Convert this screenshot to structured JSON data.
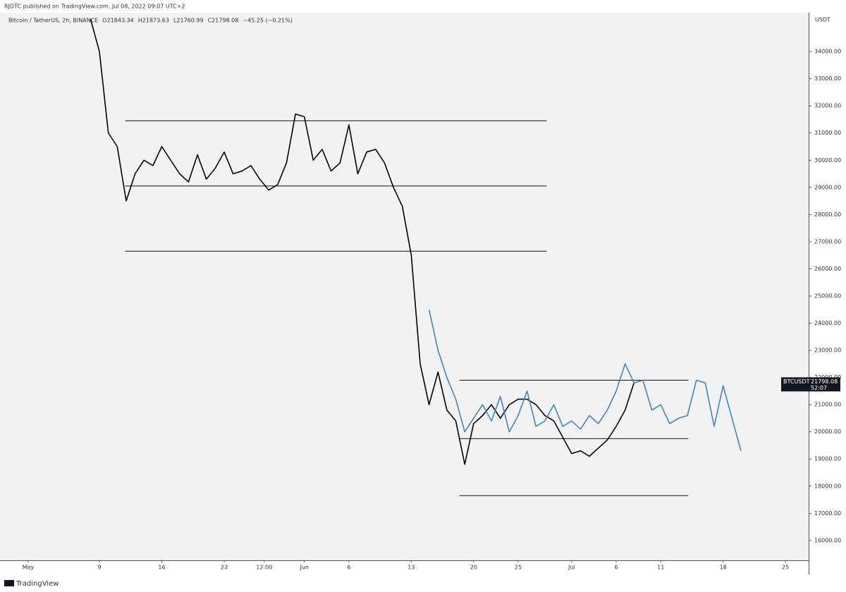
{
  "header": {
    "publisher": "RJDTC published on TradingView.com, Jul 08, 2022 09:07 UTC+2",
    "symbol": "Bitcoin / TetherUS, 2h, BINANCE",
    "ohlc": [
      {
        "label": "O",
        "value": "21843.34"
      },
      {
        "label": "H",
        "value": "21873.63"
      },
      {
        "label": "L",
        "value": "21760.99"
      },
      {
        "label": "C",
        "value": "21798.08"
      }
    ],
    "change": "−45.25 (−0.21%)"
  },
  "footer": {
    "brand": "TradingView"
  },
  "chart_data": {
    "type": "line",
    "currency": "USDT",
    "xlim": [
      -3.16,
      87.6
    ],
    "xticks": [
      {
        "value": 0,
        "label": "May"
      },
      {
        "value": 8,
        "label": "9"
      },
      {
        "value": 15,
        "label": "16"
      },
      {
        "value": 22,
        "label": "23"
      },
      {
        "value": 26.5,
        "label": "12:00"
      },
      {
        "value": 31,
        "label": "Jun"
      },
      {
        "value": 36,
        "label": "6"
      },
      {
        "value": 43,
        "label": "13"
      },
      {
        "value": 50,
        "label": "20"
      },
      {
        "value": 55,
        "label": "25"
      },
      {
        "value": 61,
        "label": "Jul"
      },
      {
        "value": 66,
        "label": "6"
      },
      {
        "value": 71,
        "label": "11"
      },
      {
        "value": 78,
        "label": "18"
      },
      {
        "value": 85,
        "label": "25"
      }
    ],
    "ylim": [
      15270,
      35430
    ],
    "yticks": [
      {
        "value": 16000,
        "label": "16000.00"
      },
      {
        "value": 17000,
        "label": "17000.00"
      },
      {
        "value": 18000,
        "label": "18000.00"
      },
      {
        "value": 19000,
        "label": "19000.00"
      },
      {
        "value": 20000,
        "label": "20000.00"
      },
      {
        "value": 21000,
        "label": "21000.00"
      },
      {
        "value": 22000,
        "label": "22000.00"
      },
      {
        "value": 23000,
        "label": "23000.00"
      },
      {
        "value": 24000,
        "label": "24000.00"
      },
      {
        "value": 25000,
        "label": "25000.00"
      },
      {
        "value": 26000,
        "label": "26000.00"
      },
      {
        "value": 27000,
        "label": "27000.00"
      },
      {
        "value": 28000,
        "label": "28000.00"
      },
      {
        "value": 29000,
        "label": "29000.00"
      },
      {
        "value": 30000,
        "label": "30000.00"
      },
      {
        "value": 31000,
        "label": "31000.00"
      },
      {
        "value": 32000,
        "label": "32000.00"
      },
      {
        "value": 33000,
        "label": "33000.00"
      },
      {
        "value": 34000,
        "label": "34000.00"
      }
    ],
    "series": [
      {
        "color": "#000000",
        "x": [
          7,
          8,
          9,
          10,
          11,
          12,
          13,
          14,
          15,
          16,
          17,
          18,
          19,
          20,
          21,
          22,
          23,
          24,
          25,
          26,
          27,
          28,
          29,
          30,
          31,
          32,
          33,
          34,
          35,
          36,
          37,
          38,
          39,
          40,
          41,
          42,
          43,
          44,
          45,
          46,
          47,
          48,
          49,
          50,
          51,
          52,
          53,
          54,
          55,
          56,
          57,
          58,
          59,
          60,
          61,
          62,
          63,
          64,
          65,
          66,
          67,
          68
        ],
        "values": [
          35200,
          34000,
          31000,
          30500,
          28500,
          29500,
          30000,
          29800,
          30500,
          30000,
          29500,
          29200,
          30200,
          29300,
          29700,
          30300,
          29500,
          29600,
          29800,
          29300,
          28900,
          29100,
          29900,
          31700,
          31600,
          30000,
          30400,
          29600,
          29900,
          31300,
          29500,
          30300,
          30400,
          29900,
          29000,
          28300,
          26500,
          22500,
          21000,
          22200,
          20800,
          20400,
          18800,
          20300,
          20600,
          21000,
          20500,
          21000,
          21200,
          21200,
          21000,
          20600,
          20400,
          19800,
          19200,
          19300,
          19100,
          19400,
          19700,
          20200,
          20800,
          21800
        ]
      },
      {
        "color": "#3d85c6",
        "x": [
          45,
          46,
          47,
          48,
          49,
          50,
          51,
          52,
          53,
          54,
          55,
          56,
          57,
          58,
          59,
          60,
          61,
          62,
          63,
          64,
          65,
          66,
          67,
          68,
          69,
          70,
          71,
          72,
          73,
          74,
          75,
          76,
          77,
          78,
          79,
          80
        ],
        "values": [
          24500,
          23000,
          22000,
          21200,
          20000,
          20500,
          21000,
          20400,
          21300,
          20000,
          20600,
          21500,
          20200,
          20400,
          21000,
          20200,
          20400,
          20100,
          20600,
          20300,
          20800,
          21500,
          22500,
          21800,
          21900,
          20800,
          21000,
          20300,
          20500,
          20600,
          21900,
          21800,
          20200,
          21700,
          20500,
          19300
        ]
      }
    ],
    "levels": [
      {
        "value": 31450,
        "from": 10.9,
        "to": 58.2
      },
      {
        "value": 29050,
        "from": 10.9,
        "to": 58.2
      },
      {
        "value": 26650,
        "from": 10.9,
        "to": 58.2
      },
      {
        "value": 21900,
        "from": 48.4,
        "to": 74.1
      },
      {
        "value": 19750,
        "from": 48.4,
        "to": 74.1
      },
      {
        "value": 17650,
        "from": 48.4,
        "to": 74.1
      }
    ],
    "price_tag": {
      "symbol": "BTCUSDT",
      "price": 21798.08,
      "countdown": "52:07"
    }
  }
}
